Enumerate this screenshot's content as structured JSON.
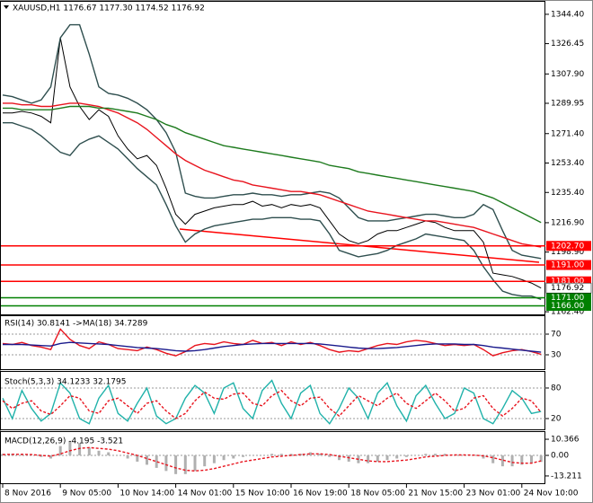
{
  "chart_data": [
    {
      "type": "line",
      "title": "XAUUSD,H1  1176.67 1177.30 1174.52 1176.92",
      "categories": [
        "8 Nov 2016",
        null,
        null,
        null,
        null,
        null,
        "9 Nov 05:00",
        null,
        null,
        null,
        null,
        null,
        "10 Nov 14:00",
        null,
        null,
        null,
        null,
        null,
        "14 Nov 01:00",
        null,
        null,
        null,
        null,
        null,
        "15 Nov 10:00",
        null,
        null,
        null,
        null,
        null,
        "16 Nov 19:00",
        null,
        null,
        null,
        null,
        null,
        "18 Nov 05:00",
        null,
        null,
        null,
        null,
        null,
        "21 Nov 15:00",
        null,
        null,
        null,
        null,
        null,
        "23 Nov 01:00",
        null,
        null,
        null,
        null,
        null,
        "24 Nov 10:00",
        null,
        null
      ],
      "series": [
        {
          "color": "#000000",
          "values": [
            1284,
            1284,
            1285,
            1284,
            1282,
            1278,
            1330,
            1300,
            1288,
            1280,
            1286,
            1282,
            1270,
            1262,
            1256,
            1258,
            1252,
            1238,
            1222,
            1216,
            1222,
            1224,
            1226,
            1227,
            1228,
            1228,
            1230,
            1227,
            1228,
            1226,
            1228,
            1227,
            1228,
            1226,
            1218,
            1210,
            1206,
            1204,
            1206,
            1210,
            1212,
            1212,
            1214,
            1216,
            1218,
            1217,
            1214,
            1212,
            1212,
            1212,
            1205,
            1186,
            1185,
            1184,
            1182,
            1180,
            1176.92
          ]
        },
        {
          "color": "#2f4f4f",
          "values": [
            1295,
            1294,
            1292,
            1290,
            1292,
            1300,
            1330,
            1338,
            1338,
            1320,
            1300,
            1296,
            1295,
            1293,
            1290,
            1286,
            1280,
            1272,
            1260,
            1235,
            1233,
            1232,
            1232,
            1233,
            1234,
            1234,
            1235,
            1234,
            1234,
            1233,
            1234,
            1234,
            1235,
            1236,
            1235,
            1232,
            1226,
            1220,
            1218,
            1218,
            1218,
            1219,
            1220,
            1221,
            1222,
            1222,
            1221,
            1220,
            1220,
            1222,
            1228,
            1225,
            1212,
            1200,
            1197,
            1196,
            1195
          ]
        },
        {
          "color": "#2f4f4f",
          "values": [
            1278,
            1278,
            1276,
            1274,
            1270,
            1265,
            1260,
            1258,
            1265,
            1268,
            1270,
            1266,
            1262,
            1256,
            1250,
            1245,
            1240,
            1228,
            1215,
            1205,
            1210,
            1213,
            1215,
            1216,
            1217,
            1218,
            1219,
            1219,
            1220,
            1220,
            1220,
            1219,
            1219,
            1218,
            1210,
            1200,
            1198,
            1196,
            1197,
            1198,
            1200,
            1203,
            1205,
            1207,
            1210,
            1209,
            1208,
            1207,
            1206,
            1200,
            1190,
            1182,
            1175,
            1173,
            1172,
            1172,
            1170
          ]
        },
        {
          "color": "#e8141e",
          "values": [
            1290,
            1290,
            1289,
            1289,
            1288,
            1288,
            1289,
            1290,
            1290,
            1289,
            1288,
            1286,
            1284,
            1281,
            1278,
            1274,
            1269,
            1264,
            1259,
            1255,
            1252,
            1249,
            1247,
            1245,
            1243,
            1242,
            1240,
            1239,
            1238,
            1237,
            1236,
            1236,
            1235,
            1234,
            1232,
            1230,
            1228,
            1226,
            1224,
            1223,
            1222,
            1221,
            1220,
            1219,
            1218,
            1218,
            1217,
            1216,
            1215,
            1214,
            1212,
            1210,
            1208,
            1206,
            1204,
            1203,
            1202
          ]
        },
        {
          "color": "#1e7b1e",
          "values": [
            1287,
            1287,
            1286,
            1286,
            1286,
            1286,
            1287,
            1288,
            1288,
            1288,
            1287,
            1287,
            1286,
            1285,
            1284,
            1282,
            1280,
            1277,
            1275,
            1272,
            1270,
            1268,
            1266,
            1264,
            1263,
            1262,
            1261,
            1260,
            1259,
            1258,
            1257,
            1256,
            1255,
            1254,
            1252,
            1251,
            1250,
            1248,
            1247,
            1246,
            1245,
            1244,
            1243,
            1242,
            1241,
            1240,
            1239,
            1238,
            1237,
            1236,
            1234,
            1232,
            1229,
            1226,
            1223,
            1220,
            1217
          ]
        }
      ],
      "ylim": [
        1160.8,
        1351.5
      ],
      "yticks": [
        {
          "value": 1344.4,
          "label": "1344.40"
        },
        1326.45,
        {
          "value": 1307.9,
          "label": "1307.90"
        },
        1289.95,
        {
          "value": 1271.4,
          "label": "1271.40"
        },
        {
          "value": 1253.4,
          "label": "1253.40"
        },
        {
          "value": 1235.4,
          "label": "1235.40"
        },
        {
          "value": 1216.9,
          "label": "1216.90"
        },
        {
          "value": 1198.9,
          "label": "1198.90"
        },
        {
          "value": 1162.4,
          "label": "1162.40"
        }
      ],
      "levels": [
        {
          "value": 1202.7,
          "label": "1202.70",
          "color": "#ff0000"
        },
        {
          "value": 1191,
          "label": "1191.00",
          "color": "#ff0000"
        },
        {
          "value": 1181,
          "label": "1181.00",
          "color": "#ff0000"
        },
        {
          "value": 1171,
          "label": "1171.00",
          "color": "#008000"
        },
        {
          "value": 1166,
          "label": "1166.00",
          "color": "#008000"
        }
      ],
      "last_price": 1176.92
    },
    {
      "type": "line",
      "title": "RSI(14) 30.8141 ->MA(18) 34.7289",
      "series": [
        {
          "color": "#e8141e",
          "values": [
            52,
            50,
            54,
            48,
            45,
            40,
            80,
            60,
            48,
            42,
            55,
            50,
            42,
            40,
            38,
            45,
            40,
            33,
            28,
            36,
            48,
            52,
            50,
            55,
            52,
            50,
            58,
            52,
            54,
            48,
            55,
            50,
            54,
            48,
            40,
            35,
            38,
            36,
            42,
            48,
            52,
            50,
            55,
            58,
            56,
            52,
            48,
            50,
            48,
            50,
            40,
            28,
            34,
            38,
            40,
            36,
            31
          ]
        },
        {
          "color": "#1a1a8c",
          "values": [
            50,
            50,
            50,
            49,
            48,
            47,
            52,
            54,
            53,
            52,
            51,
            50,
            48,
            46,
            44,
            43,
            42,
            40,
            38,
            37,
            38,
            40,
            43,
            46,
            48,
            50,
            51,
            52,
            52,
            52,
            52,
            52,
            52,
            51,
            49,
            47,
            45,
            43,
            42,
            42,
            43,
            44,
            46,
            48,
            50,
            51,
            51,
            51,
            50,
            50,
            48,
            45,
            43,
            41,
            39,
            37,
            35
          ]
        }
      ],
      "ylim": [
        3.9,
        104.8
      ],
      "yticks": [
        70,
        30
      ]
    },
    {
      "type": "line",
      "title": "Stoch(5,3,3) 34.1233 32.1795",
      "series": [
        {
          "color": "#20b2aa",
          "values": [
            60,
            20,
            75,
            40,
            15,
            30,
            90,
            70,
            20,
            10,
            60,
            85,
            30,
            15,
            50,
            80,
            25,
            10,
            20,
            60,
            85,
            70,
            30,
            80,
            90,
            40,
            20,
            75,
            95,
            50,
            20,
            70,
            85,
            30,
            10,
            40,
            80,
            60,
            20,
            70,
            90,
            45,
            15,
            65,
            85,
            50,
            20,
            30,
            80,
            70,
            20,
            10,
            40,
            75,
            60,
            30,
            34
          ]
        },
        {
          "color": "#e8141e",
          "dashed": true,
          "values": [
            55,
            40,
            50,
            55,
            35,
            28,
            45,
            65,
            60,
            35,
            30,
            55,
            60,
            45,
            30,
            50,
            55,
            35,
            20,
            30,
            55,
            72,
            60,
            58,
            68,
            70,
            50,
            45,
            65,
            75,
            55,
            45,
            60,
            62,
            40,
            25,
            45,
            65,
            55,
            45,
            60,
            70,
            50,
            40,
            55,
            70,
            55,
            35,
            40,
            60,
            65,
            40,
            25,
            40,
            60,
            55,
            32
          ]
        }
      ],
      "ylim": [
        0.6,
        111.7
      ],
      "yticks": [
        80,
        20
      ]
    },
    {
      "type": "macd",
      "title": "MACD(12,26,9) -4.195 -3.521",
      "series": [
        {
          "color": "#b0b0b0",
          "bars": true,
          "values": [
            1,
            1,
            0.5,
            0,
            -1,
            -2,
            6,
            9,
            8,
            5,
            3,
            2,
            0,
            -2,
            -4,
            -6,
            -8,
            -10,
            -12,
            -12,
            -10,
            -7,
            -5,
            -3,
            -2,
            -1,
            0,
            0,
            1,
            1,
            1,
            1,
            2,
            1,
            -1,
            -3,
            -4,
            -5,
            -5,
            -4,
            -3,
            -2,
            -1,
            0,
            1,
            1,
            1,
            0,
            0,
            0,
            -2,
            -5,
            -7,
            -7,
            -6,
            -5,
            -4.195
          ]
        },
        {
          "color": "#e8141e",
          "dashed": true,
          "values": [
            0.5,
            0.7,
            0.7,
            0.5,
            0,
            -0.5,
            1,
            3,
            4.5,
            5,
            4.5,
            4,
            3,
            1.5,
            0,
            -2,
            -4,
            -6,
            -8,
            -9.5,
            -10,
            -9.5,
            -8.5,
            -7,
            -5.5,
            -4,
            -3,
            -2,
            -1,
            -0.5,
            0,
            0.5,
            1,
            1,
            0.5,
            -0.5,
            -1.5,
            -2.5,
            -3.5,
            -4,
            -4,
            -3.5,
            -3,
            -2,
            -1,
            -0.5,
            0,
            0.3,
            0.3,
            0.2,
            -0.3,
            -1.5,
            -3,
            -4.5,
            -5,
            -5,
            -3.521
          ]
        }
      ],
      "ylim": [
        -17.3,
        15
      ],
      "yticks": [
        10.366,
        {
          "value": 0,
          "label": "0.00"
        },
        -13.211
      ]
    }
  ]
}
